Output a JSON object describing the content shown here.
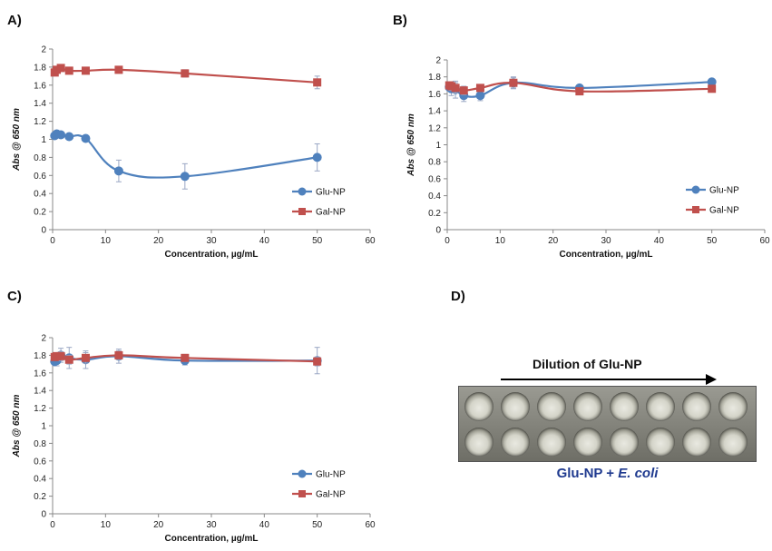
{
  "panels": {
    "a": "A)",
    "b": "B)",
    "c": "C)",
    "d": "D)"
  },
  "chart_data": [
    {
      "panel": "A)",
      "type": "line",
      "xlabel": "Concentration, µg/mL",
      "ylabel": "Abs @ 650 nm",
      "xlim": [
        0,
        60
      ],
      "ylim": [
        0,
        2
      ],
      "xticks": [
        0,
        10,
        20,
        30,
        40,
        50,
        60
      ],
      "yticks": [
        0,
        0.2,
        0.4,
        0.6,
        0.8,
        1,
        1.2,
        1.4,
        1.6,
        1.8,
        2
      ],
      "legend_position": "right",
      "series": [
        {
          "name": "Glu-NP",
          "color": "#4f81bd",
          "marker": "circle",
          "x": [
            0.39,
            0.78,
            1.56,
            3.13,
            6.25,
            12.5,
            25,
            50
          ],
          "y": [
            1.04,
            1.06,
            1.05,
            1.03,
            1.01,
            0.65,
            0.59,
            0.8
          ],
          "error": [
            0.02,
            0.02,
            0.02,
            0.02,
            0.02,
            0.12,
            0.14,
            0.15
          ]
        },
        {
          "name": "Gal-NP",
          "color": "#c0504d",
          "marker": "square",
          "x": [
            0.39,
            0.78,
            1.56,
            3.13,
            6.25,
            12.5,
            25,
            50
          ],
          "y": [
            1.74,
            1.77,
            1.79,
            1.76,
            1.76,
            1.77,
            1.73,
            1.63
          ],
          "error": [
            0.02,
            0.03,
            0.03,
            0.02,
            0.02,
            0.02,
            0.04,
            0.07
          ]
        }
      ]
    },
    {
      "panel": "B)",
      "type": "line",
      "xlabel": "Concentration, µg/mL",
      "ylabel": "Abs @ 650 nm",
      "xlim": [
        0,
        60
      ],
      "ylim": [
        0,
        2
      ],
      "xticks": [
        0,
        10,
        20,
        30,
        40,
        50,
        60
      ],
      "yticks": [
        0,
        0.2,
        0.4,
        0.6,
        0.8,
        1,
        1.2,
        1.4,
        1.6,
        1.8,
        2
      ],
      "legend_position": "right",
      "series": [
        {
          "name": "Glu-NP",
          "color": "#4f81bd",
          "marker": "circle",
          "x": [
            0.39,
            0.78,
            1.56,
            3.13,
            6.25,
            12.5,
            25,
            50
          ],
          "y": [
            1.68,
            1.66,
            1.65,
            1.58,
            1.58,
            1.73,
            1.67,
            1.74
          ],
          "error": [
            0.05,
            0.08,
            0.1,
            0.07,
            0.06,
            0.06,
            0.03,
            0.03
          ]
        },
        {
          "name": "Gal-NP",
          "color": "#c0504d",
          "marker": "square",
          "x": [
            0.39,
            0.78,
            1.56,
            3.13,
            6.25,
            12.5,
            25,
            50
          ],
          "y": [
            1.7,
            1.69,
            1.67,
            1.64,
            1.67,
            1.73,
            1.63,
            1.66
          ],
          "error": [
            0.04,
            0.05,
            0.06,
            0.05,
            0.04,
            0.07,
            0.03,
            0.03
          ]
        }
      ]
    },
    {
      "panel": "C)",
      "type": "line",
      "xlabel": "Concentration, µg/mL",
      "ylabel": "Abs @ 650 nm",
      "xlim": [
        0,
        60
      ],
      "ylim": [
        0,
        2
      ],
      "xticks": [
        0,
        10,
        20,
        30,
        40,
        50,
        60
      ],
      "yticks": [
        0,
        0.2,
        0.4,
        0.6,
        0.8,
        1,
        1.2,
        1.4,
        1.6,
        1.8,
        2
      ],
      "legend_position": "right",
      "series": [
        {
          "name": "Glu-NP",
          "color": "#4f81bd",
          "marker": "circle",
          "x": [
            0.39,
            0.78,
            1.56,
            3.13,
            6.25,
            12.5,
            25,
            50
          ],
          "y": [
            1.73,
            1.74,
            1.8,
            1.77,
            1.75,
            1.79,
            1.74,
            1.74
          ],
          "error": [
            0.05,
            0.06,
            0.08,
            0.12,
            0.1,
            0.08,
            0.05,
            0.15
          ]
        },
        {
          "name": "Gal-NP",
          "color": "#c0504d",
          "marker": "square",
          "x": [
            0.39,
            0.78,
            1.56,
            3.13,
            6.25,
            12.5,
            25,
            50
          ],
          "y": [
            1.78,
            1.79,
            1.79,
            1.75,
            1.77,
            1.8,
            1.77,
            1.73
          ],
          "error": [
            0.03,
            0.04,
            0.05,
            0.05,
            0.06,
            0.05,
            0.04,
            0.05
          ]
        }
      ]
    }
  ],
  "photo": {
    "arrow_label": "Dilution of Glu-NP",
    "caption_prefix": "Glu-NP + ",
    "caption_italic": "E. coli",
    "rows": 2,
    "wells_per_row": 8,
    "colors": {
      "caption": "#1f3a8f"
    }
  }
}
